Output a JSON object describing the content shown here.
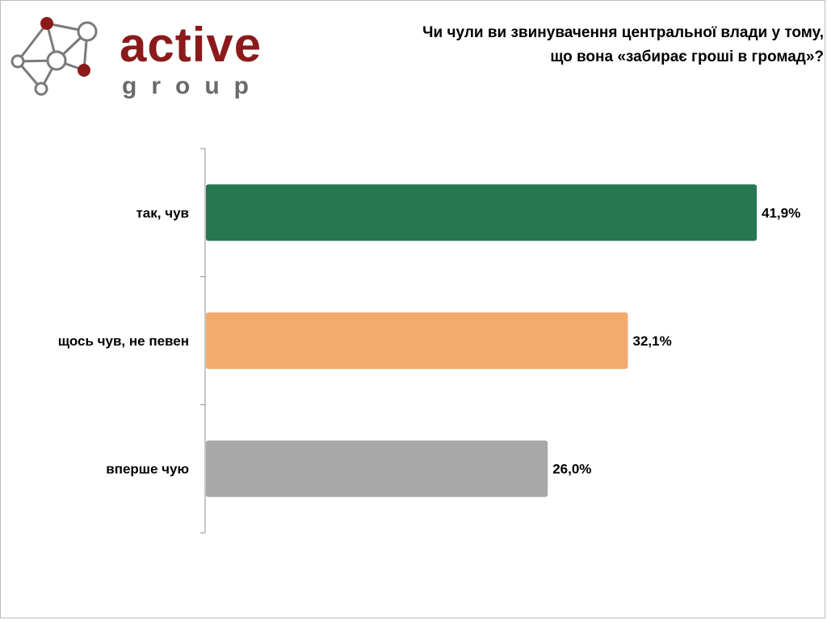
{
  "logo": {
    "word": "active",
    "sub": "group"
  },
  "colors": {
    "logo_red": "#8b1a1a",
    "logo_gray": "#6a6a6a",
    "bar_green": "#267752",
    "bar_orange": "#f2ab6b",
    "bar_gray": "#a8a8a8"
  },
  "chart_data": {
    "type": "bar",
    "orientation": "horizontal",
    "title_lines": [
      "Чи чули ви звинувачення центральної влади у тому,",
      "що вона «забирає гроші в громад»?"
    ],
    "categories": [
      "так, чув",
      "щось чув, не певен",
      "вперше чую"
    ],
    "values": [
      41.9,
      32.1,
      26.0
    ],
    "value_labels": [
      "41,9%",
      "32,1%",
      "26,0%"
    ],
    "colors": [
      "#267752",
      "#f2ab6b",
      "#a8a8a8"
    ],
    "xlim": [
      0,
      45
    ],
    "grid": false,
    "legend": "none"
  }
}
